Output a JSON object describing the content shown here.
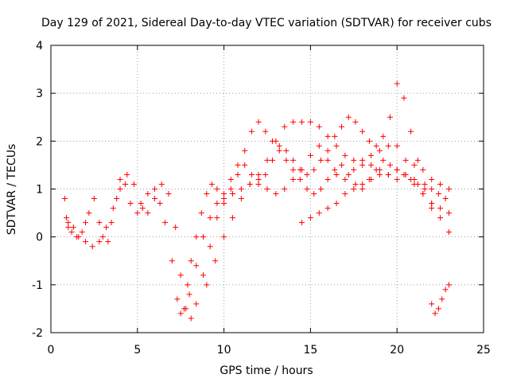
{
  "chart_data": {
    "type": "scatter",
    "title": "Day 129 of 2021, Sidereal Day-to-day VTEC variation (SDTVAR) for receiver cubs",
    "xlabel": "GPS time / hours",
    "ylabel": "SDTVAR / TECUs",
    "xlim": [
      0,
      25
    ],
    "ylim": [
      -2,
      4
    ],
    "xticks": [
      "0",
      "5",
      "10",
      "15",
      "20",
      "25"
    ],
    "yticks": [
      "-2",
      "-1",
      "0",
      "1",
      "2",
      "3",
      "4"
    ],
    "grid": true,
    "marker": "+",
    "color": "#ff0000",
    "series": [
      {
        "x": [
          0.8,
          0.9,
          1.0,
          1.2,
          1.5,
          1.8,
          2.0,
          2.2,
          2.5,
          2.8,
          3.0,
          3.3,
          3.5,
          3.8,
          4.0,
          4.3,
          4.6,
          5.0,
          5.3,
          5.6,
          6.0,
          6.3,
          6.6,
          7.0,
          7.3,
          7.5,
          7.7,
          7.9,
          8.1,
          8.4,
          8.7,
          9.0,
          9.3,
          9.6,
          10.0,
          10.5,
          11.0,
          11.5,
          12.0,
          12.5,
          13.0,
          13.5,
          14.0,
          14.5,
          15.0,
          15.5,
          16.0,
          16.5,
          17.0,
          17.5,
          18.0,
          18.5,
          19.0,
          19.5,
          20.0,
          20.5,
          21.0,
          21.5,
          22.0,
          22.5,
          23.0
        ],
        "y": [
          0.8,
          0.4,
          0.2,
          0.1,
          0.0,
          0.1,
          0.3,
          0.5,
          0.8,
          0.3,
          0.0,
          -0.1,
          0.3,
          0.8,
          1.2,
          1.1,
          0.7,
          0.5,
          0.6,
          0.9,
          1.0,
          0.7,
          0.3,
          -0.5,
          -1.3,
          -1.6,
          -1.5,
          -1.0,
          -0.5,
          0.0,
          0.5,
          0.9,
          1.1,
          1.0,
          0.8,
          0.9,
          1.0,
          1.1,
          1.2,
          1.0,
          0.9,
          1.0,
          1.2,
          1.4,
          1.7,
          1.9,
          1.6,
          1.3,
          1.2,
          1.4,
          1.6,
          1.7,
          1.8,
          1.9,
          1.9,
          1.6,
          1.2,
          0.9,
          0.7,
          0.4,
          0.1
        ]
      },
      {
        "x": [
          1.0,
          1.3,
          1.6,
          2.0,
          2.4,
          2.8,
          3.2,
          3.6,
          4.0,
          4.4,
          4.8,
          5.2,
          5.6,
          6.0,
          6.4,
          6.8,
          7.2,
          7.5,
          7.8,
          8.1,
          8.4,
          8.8,
          9.2,
          9.6,
          10.0,
          10.4,
          10.8,
          11.2,
          11.6,
          12.0,
          12.4,
          12.8,
          13.2,
          13.6,
          14.0,
          14.4,
          14.8,
          15.2,
          15.6,
          16.0,
          16.4,
          16.8,
          17.2,
          17.6,
          18.0,
          18.4,
          18.8,
          19.2,
          19.6,
          20.0,
          20.4,
          20.8,
          21.2,
          21.6,
          22.0,
          22.4,
          22.8
        ],
        "y": [
          0.3,
          0.2,
          0.0,
          -0.1,
          -0.2,
          -0.1,
          0.2,
          0.6,
          1.0,
          1.3,
          1.1,
          0.7,
          0.5,
          0.8,
          1.1,
          0.9,
          0.2,
          -0.8,
          -1.5,
          -1.7,
          -1.4,
          -0.8,
          -0.2,
          0.4,
          0.7,
          1.0,
          1.3,
          1.5,
          1.3,
          1.1,
          1.3,
          1.6,
          1.8,
          1.6,
          1.4,
          1.2,
          1.0,
          0.9,
          1.0,
          1.2,
          1.4,
          1.5,
          1.3,
          1.1,
          1.0,
          1.2,
          1.4,
          1.6,
          1.5,
          1.4,
          1.3,
          1.2,
          1.1,
          1.0,
          1.0,
          0.9,
          0.8
        ]
      },
      {
        "x": [
          8.0,
          8.4,
          8.8,
          9.2,
          9.6,
          10.0,
          10.4,
          10.8,
          11.2,
          11.6,
          12.0,
          12.4,
          12.8,
          13.2,
          13.6,
          14.0,
          14.4,
          14.8,
          15.2,
          15.6,
          16.0,
          16.4,
          16.8,
          17.2,
          17.6,
          18.0,
          18.4,
          18.8,
          19.2,
          19.6,
          20.0,
          20.4,
          20.8,
          21.2,
          21.6,
          22.0
        ],
        "y": [
          -1.2,
          -0.6,
          0.0,
          0.4,
          0.7,
          0.9,
          1.2,
          1.5,
          1.8,
          2.2,
          2.4,
          2.2,
          2.0,
          1.9,
          1.8,
          1.6,
          1.4,
          1.3,
          1.4,
          1.6,
          1.8,
          2.1,
          2.3,
          2.5,
          2.4,
          2.2,
          2.0,
          1.9,
          2.1,
          2.5,
          3.2,
          2.9,
          2.2,
          1.6,
          1.1,
          0.6
        ]
      },
      {
        "x": [
          9.0,
          9.5,
          10.0,
          10.5,
          11.0,
          11.5,
          12.0,
          12.5,
          13.0,
          13.5,
          14.0,
          14.5,
          15.0,
          15.5,
          16.0,
          16.5,
          17.0,
          17.5,
          18.0,
          18.5,
          19.0,
          19.5,
          20.0,
          20.5,
          21.0,
          21.5,
          22.0,
          22.5,
          23.0
        ],
        "y": [
          -1.0,
          -0.5,
          0.0,
          0.4,
          0.8,
          1.1,
          1.3,
          1.6,
          2.0,
          2.3,
          2.4,
          2.4,
          2.4,
          2.3,
          2.1,
          1.9,
          1.7,
          1.6,
          1.5,
          1.5,
          1.4,
          1.3,
          1.2,
          1.3,
          1.5,
          1.4,
          1.2,
          1.1,
          1.0
        ]
      },
      {
        "x": [
          14.5,
          15.0,
          15.5,
          16.0,
          16.5,
          17.0,
          17.5,
          18.0,
          18.5,
          19.0,
          19.5,
          20.0,
          20.5,
          21.0,
          21.5,
          22.0,
          22.5,
          23.0
        ],
        "y": [
          0.3,
          0.4,
          0.5,
          0.6,
          0.7,
          0.9,
          1.0,
          1.1,
          1.2,
          1.3,
          1.3,
          1.4,
          1.3,
          1.1,
          0.9,
          0.7,
          0.6,
          0.5
        ]
      },
      {
        "x": [
          22.0,
          22.2,
          22.4,
          22.6,
          22.8,
          23.0
        ],
        "y": [
          -1.4,
          -1.6,
          -1.5,
          -1.3,
          -1.1,
          -1.0
        ]
      }
    ]
  }
}
